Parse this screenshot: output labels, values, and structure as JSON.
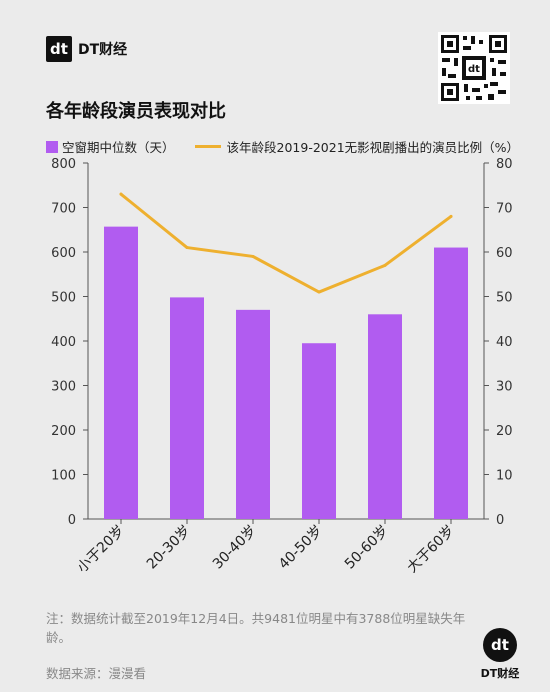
{
  "brand": {
    "badge": "dt",
    "name": "DT财经"
  },
  "qr_icon": "qr-code-icon",
  "title": "各年龄段演员表现对比",
  "legend": {
    "bar": "空窗期中位数（天）",
    "line": "该年龄段2019-2021无影视剧播出的演员比例（%）"
  },
  "colors": {
    "bar": "#b15cf0",
    "line": "#eeb02f",
    "axis": "#555555"
  },
  "chart_data": {
    "type": "bar",
    "categories": [
      "小于20岁",
      "20-30岁",
      "30-40岁",
      "40-50岁",
      "50-60岁",
      "大于60岁"
    ],
    "series": [
      {
        "name": "空窗期中位数（天）",
        "type": "bar",
        "axis": "left",
        "values": [
          657,
          498,
          470,
          395,
          460,
          610
        ]
      },
      {
        "name": "该年龄段2019-2021无影视剧播出的演员比例（%）",
        "type": "line",
        "axis": "right",
        "values": [
          73,
          61,
          59,
          51,
          57,
          68
        ]
      }
    ],
    "ylim_left": [
      0,
      800
    ],
    "yticks_left": [
      "0",
      "100",
      "200",
      "300",
      "400",
      "500",
      "600",
      "700",
      "800"
    ],
    "ylim_right": [
      0,
      80
    ],
    "yticks_right": [
      "0",
      "10",
      "20",
      "30",
      "40",
      "50",
      "60",
      "70",
      "80"
    ],
    "grid": false,
    "legend_position": "top-left"
  },
  "note": "注：数据统计截至2019年12月4日。共9481位明星中有3788位明星缺失年龄。",
  "source": "数据来源：漫漫看"
}
